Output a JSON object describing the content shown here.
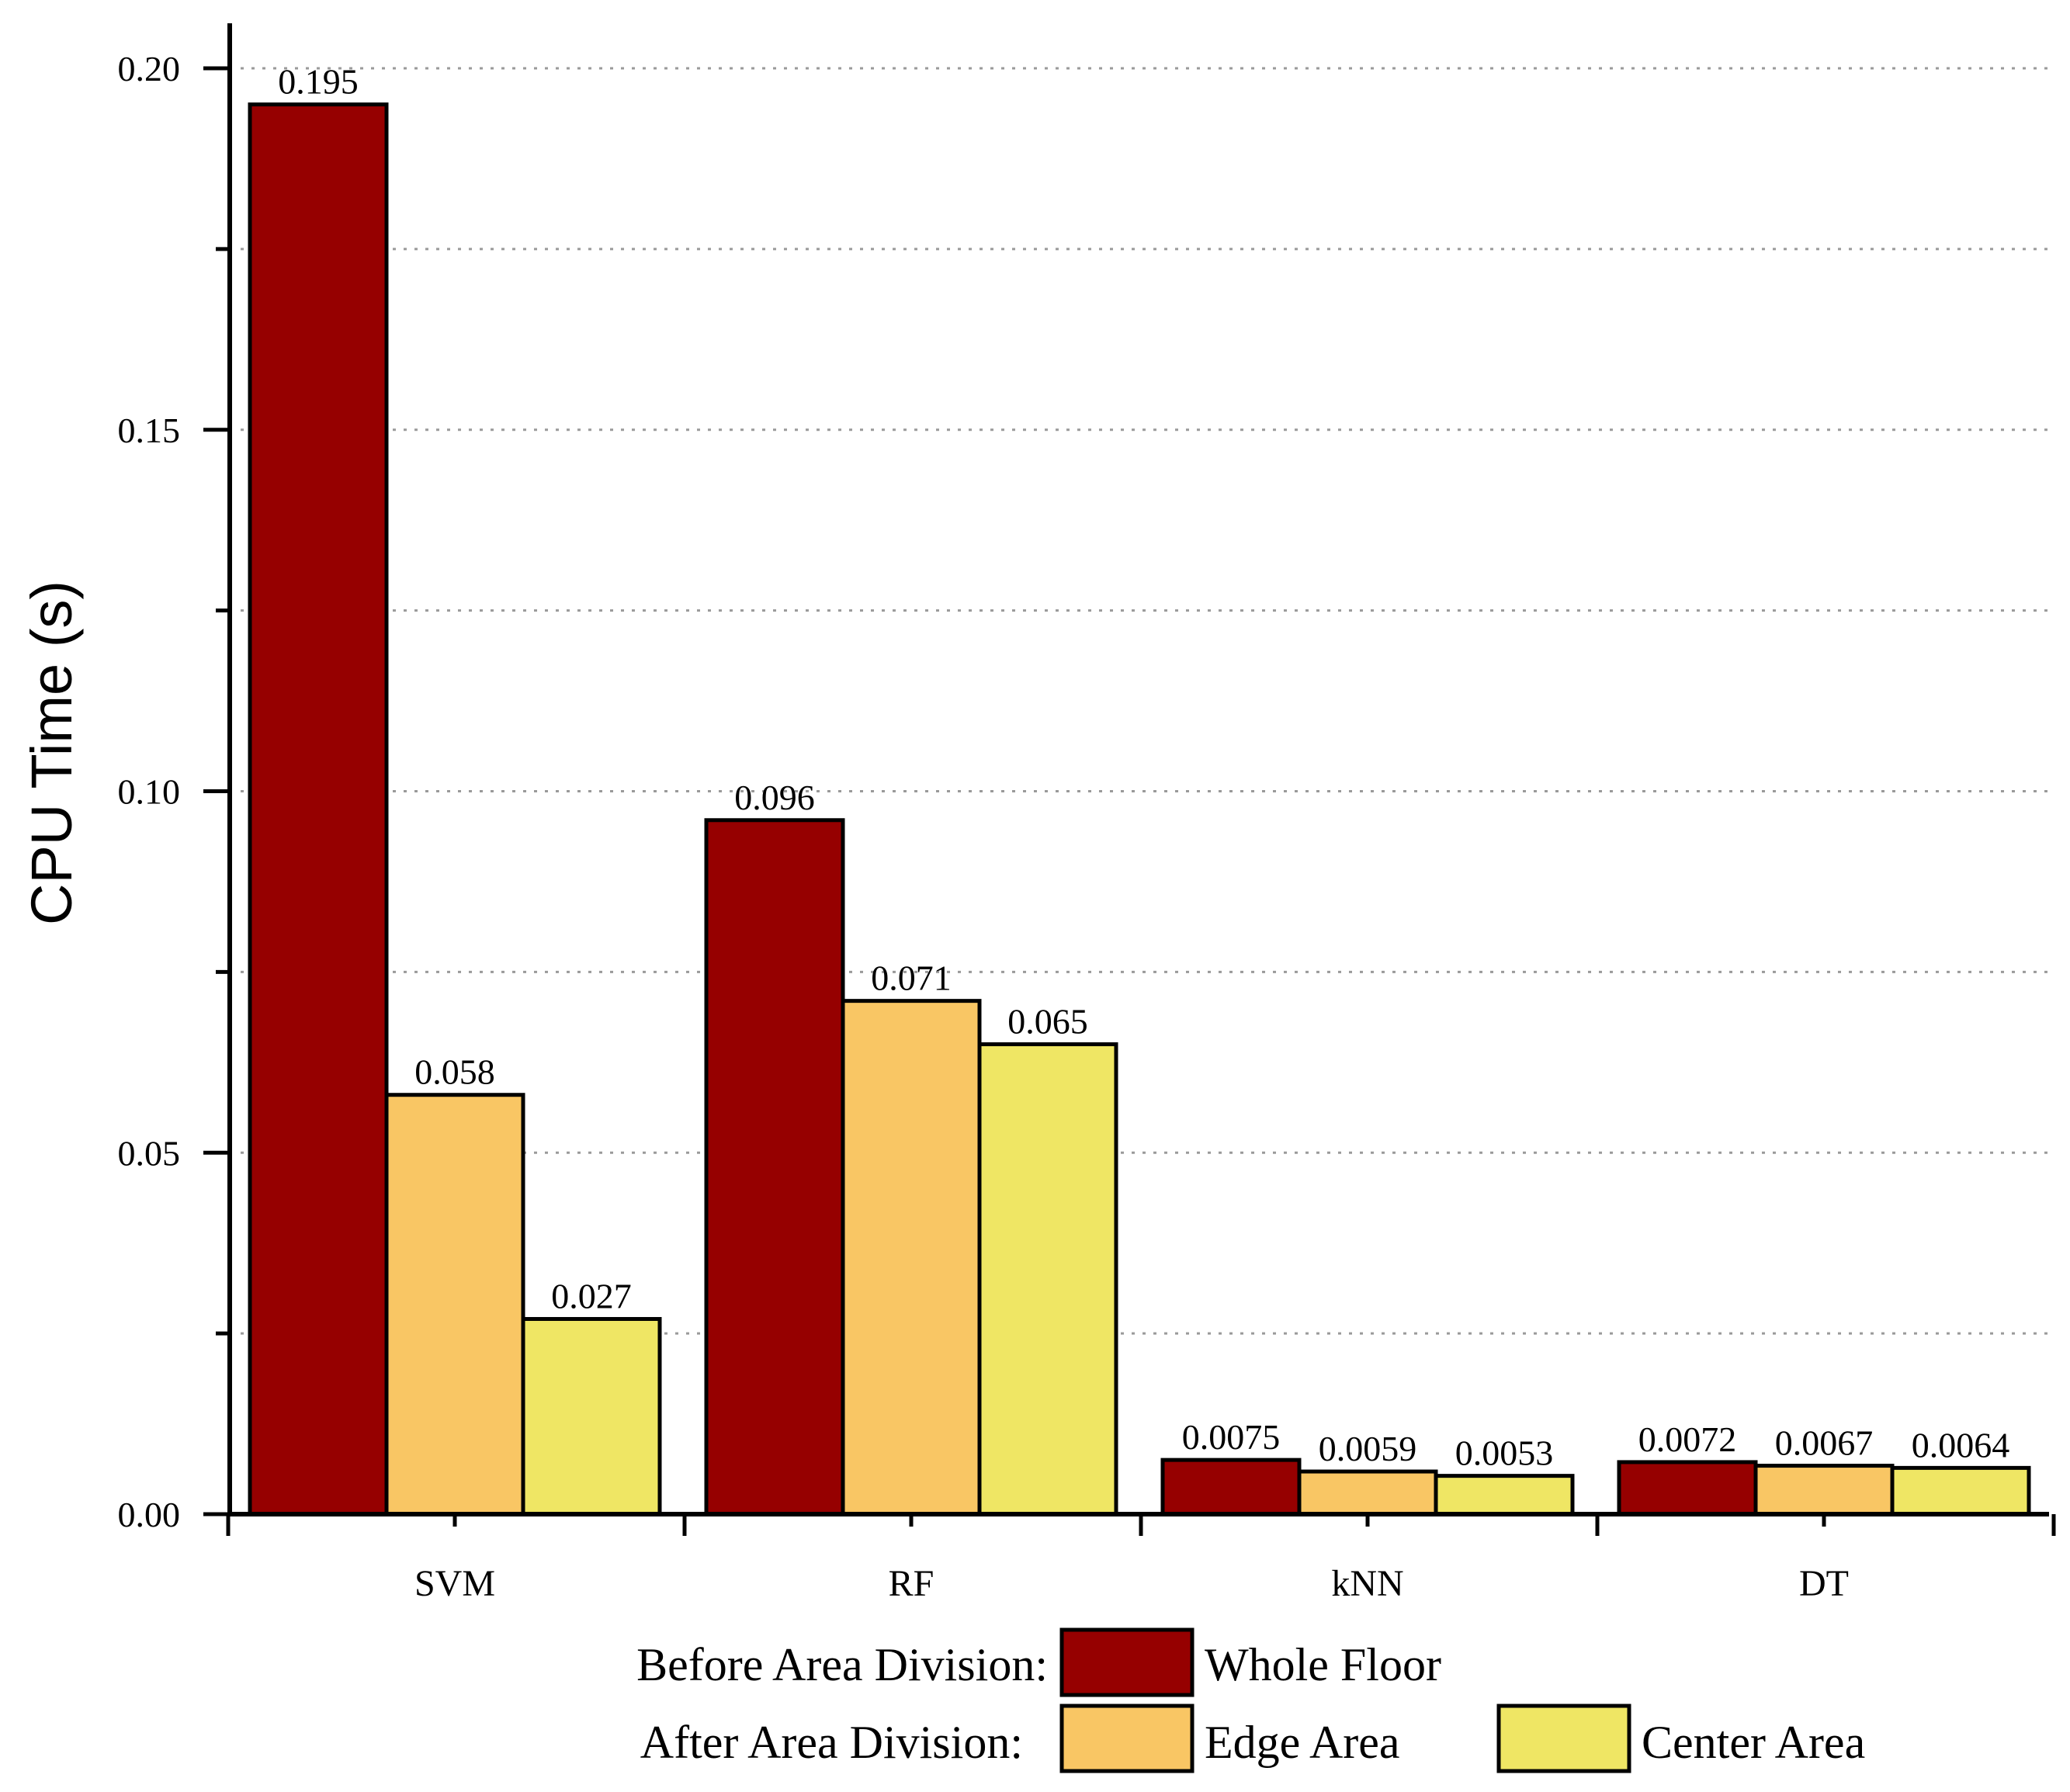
{
  "chart_data": {
    "type": "bar",
    "title": "",
    "xlabel": "",
    "ylabel": "CPU Time (s)",
    "ylim": [
      0,
      0.205
    ],
    "yticks": [
      {
        "value": 0.0,
        "label": "0.00"
      },
      {
        "value": 0.05,
        "label": "0.05"
      },
      {
        "value": 0.1,
        "label": "0.10"
      },
      {
        "value": 0.15,
        "label": "0.15"
      },
      {
        "value": 0.2,
        "label": "0.20"
      }
    ],
    "minor_yticks": [
      0.025,
      0.075,
      0.125,
      0.175
    ],
    "grid": true,
    "categories": [
      "SVM",
      "RF",
      "kNN",
      "DT"
    ],
    "series": [
      {
        "name": "Whole Floor",
        "color": "#960000",
        "values": [
          0.195,
          0.096,
          0.0075,
          0.0072
        ],
        "labels": [
          "0.195",
          "0.096",
          "0.0075",
          "0.0072"
        ]
      },
      {
        "name": "Edge Area",
        "color": "#F9C664",
        "values": [
          0.058,
          0.071,
          0.0059,
          0.0067
        ],
        "labels": [
          "0.058",
          "0.071",
          "0.0059",
          "0.0067"
        ]
      },
      {
        "name": "Center Area",
        "color": "#EFE664",
        "values": [
          0.027,
          0.065,
          0.0053,
          0.0064
        ],
        "labels": [
          "0.027",
          "0.065",
          "0.0053",
          "0.0064"
        ]
      }
    ],
    "legend": {
      "placement": "bottom",
      "groups": [
        {
          "title": "Before Area Division:",
          "entries": [
            "Whole Floor"
          ]
        },
        {
          "title": "After Area Division:",
          "entries": [
            "Edge Area",
            "Center Area"
          ]
        }
      ]
    }
  }
}
